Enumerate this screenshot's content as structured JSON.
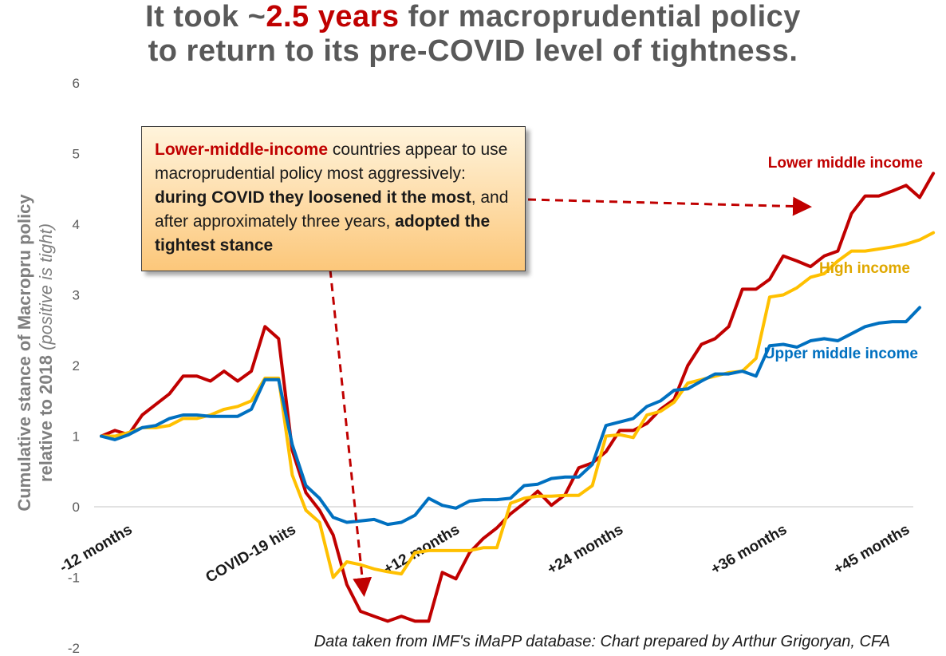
{
  "title": {
    "line1_pre": "It took ~",
    "line1_highlight": "2.5 years",
    "line1_post": " for macroprudential policy",
    "line2": "to return to its pre-COVID level of tightness."
  },
  "annotation": {
    "p1": "Lower-middle-income",
    "p2": " countries appear to use macroprudential policy most aggressively: ",
    "p3": "during COVID they loosened it the most",
    "p4": ", and after approximately three years, ",
    "p5": "adopted the tightest stance"
  },
  "footnote": "Data taken from IMF's iMaPP database: Chart prepared by Arthur Grigoryan, CFA",
  "ylabel": {
    "main1": "Cumulative stance of Macropru policy",
    "main2": "relative to 2018",
    "italic": "(positive is tight)"
  },
  "chart_data": {
    "type": "line",
    "ylim": [
      -2,
      6
    ],
    "yticks": [
      "6",
      "5",
      "4",
      "3",
      "2",
      "1",
      "0",
      "-1",
      "-2"
    ],
    "xtick_labels": [
      {
        "i": 0,
        "label": "-12 months"
      },
      {
        "i": 12,
        "label": "COVID-19 hits"
      },
      {
        "i": 24,
        "label": "+12 months"
      },
      {
        "i": 36,
        "label": "+24 months"
      },
      {
        "i": 48,
        "label": "+36 months"
      },
      {
        "i": 57,
        "label": "+45 months"
      }
    ],
    "grid": false,
    "series": [
      {
        "name": "Lower middle income",
        "color": "#c00000",
        "values": [
          1.0,
          1.08,
          1.02,
          1.3,
          1.45,
          1.6,
          1.85,
          1.85,
          1.78,
          1.92,
          1.78,
          1.92,
          2.55,
          2.38,
          0.8,
          0.2,
          -0.05,
          -0.4,
          -1.1,
          -1.48,
          -1.55,
          -1.62,
          -1.55,
          -1.62,
          -1.62,
          -0.93,
          -1.02,
          -0.65,
          -0.45,
          -0.3,
          -0.1,
          0.05,
          0.22,
          0.02,
          0.17,
          0.55,
          0.62,
          0.78,
          1.08,
          1.08,
          1.18,
          1.38,
          1.52,
          2.0,
          2.3,
          2.38,
          2.55,
          3.08,
          3.08,
          3.22,
          3.55,
          3.48,
          3.4,
          3.55,
          3.62,
          4.15,
          4.4,
          4.4,
          4.47,
          4.55,
          4.38,
          4.72
        ]
      },
      {
        "name": "High income",
        "color": "#ffc000",
        "values": [
          1.0,
          1.0,
          1.05,
          1.12,
          1.12,
          1.15,
          1.25,
          1.25,
          1.3,
          1.38,
          1.42,
          1.5,
          1.82,
          1.82,
          0.45,
          -0.05,
          -0.22,
          -1.0,
          -0.78,
          -0.82,
          -0.88,
          -0.92,
          -0.95,
          -0.65,
          -0.62,
          -0.62,
          -0.62,
          -0.62,
          -0.58,
          -0.58,
          0.05,
          0.12,
          0.15,
          0.15,
          0.16,
          0.16,
          0.3,
          1.0,
          1.02,
          0.98,
          1.3,
          1.35,
          1.48,
          1.75,
          1.8,
          1.85,
          1.9,
          1.92,
          2.1,
          2.97,
          3.0,
          3.1,
          3.25,
          3.3,
          3.48,
          3.62,
          3.62,
          3.65,
          3.68,
          3.72,
          3.78,
          3.88
        ]
      },
      {
        "name": "Upper middle income",
        "color": "#0070c0",
        "values": [
          1.0,
          0.95,
          1.02,
          1.12,
          1.15,
          1.25,
          1.3,
          1.3,
          1.28,
          1.28,
          1.28,
          1.38,
          1.8,
          1.8,
          0.88,
          0.3,
          0.12,
          -0.15,
          -0.22,
          -0.2,
          -0.18,
          -0.25,
          -0.22,
          -0.12,
          0.12,
          0.02,
          -0.02,
          0.08,
          0.1,
          0.1,
          0.12,
          0.3,
          0.32,
          0.4,
          0.42,
          0.42,
          0.6,
          1.15,
          1.2,
          1.25,
          1.42,
          1.5,
          1.65,
          1.67,
          1.78,
          1.88,
          1.88,
          1.92,
          1.85,
          2.28,
          2.3,
          2.26,
          2.35,
          2.38,
          2.35,
          2.45,
          2.55,
          2.6,
          2.62,
          2.62,
          2.82
        ]
      }
    ],
    "series_labels": [
      "Lower middle income",
      "High income",
      "Upper middle income"
    ]
  }
}
